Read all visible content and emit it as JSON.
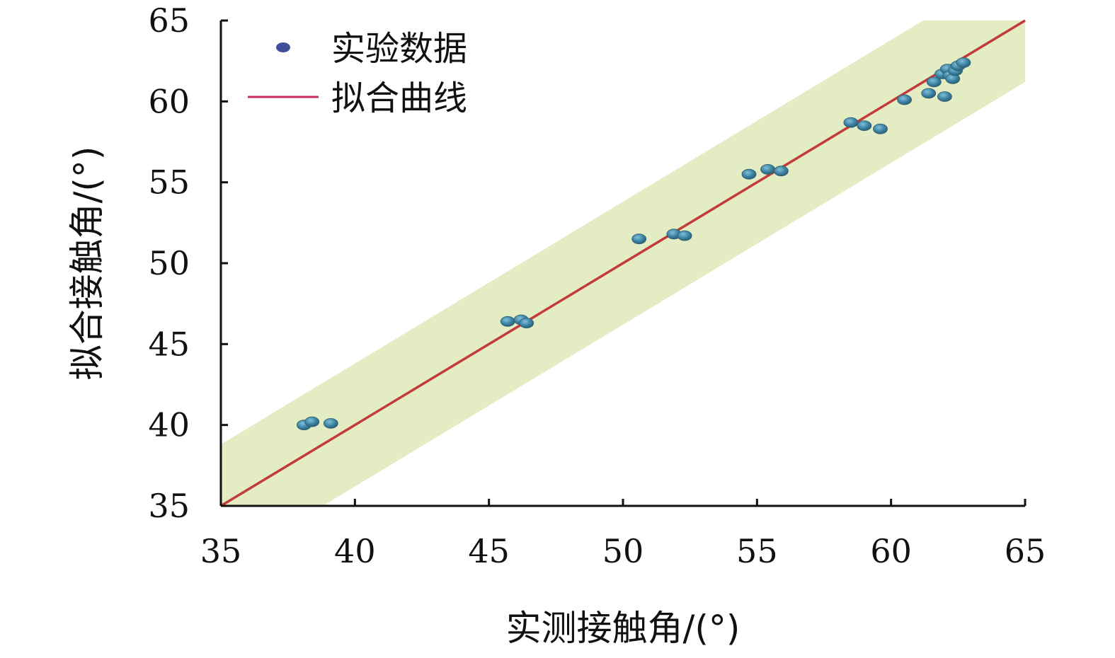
{
  "chart_data": {
    "type": "scatter",
    "title": "",
    "xlabel": "实测接触角/(°)",
    "ylabel": "拟合接触角/(°)",
    "xlim": [
      35,
      65
    ],
    "ylim": [
      35,
      65
    ],
    "x_ticks": [
      "35",
      "40",
      "45",
      "50",
      "55",
      "60",
      "65"
    ],
    "y_ticks": [
      "35",
      "40",
      "45",
      "50",
      "55",
      "60",
      "65"
    ],
    "grid": false,
    "legend_position": "top-left",
    "series": [
      {
        "name": "实验数据",
        "type": "scatter",
        "color": "#3b7fa8",
        "points": [
          [
            38.1,
            40.0
          ],
          [
            38.4,
            40.2
          ],
          [
            39.1,
            40.1
          ],
          [
            45.7,
            46.4
          ],
          [
            46.2,
            46.5
          ],
          [
            46.4,
            46.3
          ],
          [
            50.6,
            51.5
          ],
          [
            51.9,
            51.8
          ],
          [
            52.3,
            51.7
          ],
          [
            54.7,
            55.5
          ],
          [
            55.4,
            55.8
          ],
          [
            55.9,
            55.7
          ],
          [
            58.5,
            58.7
          ],
          [
            59.0,
            58.5
          ],
          [
            59.6,
            58.3
          ],
          [
            60.5,
            60.1
          ],
          [
            61.4,
            60.5
          ],
          [
            61.6,
            61.2
          ],
          [
            62.0,
            60.3
          ],
          [
            61.9,
            61.7
          ],
          [
            62.1,
            62.0
          ],
          [
            62.2,
            61.6
          ],
          [
            62.3,
            61.4
          ],
          [
            62.4,
            61.9
          ],
          [
            62.5,
            62.2
          ],
          [
            62.7,
            62.4
          ]
        ]
      },
      {
        "name": "拟合曲线",
        "type": "line",
        "color": "#c23a3a",
        "points": [
          [
            35,
            35
          ],
          [
            65,
            65
          ]
        ]
      }
    ],
    "band": {
      "color": "#e3ecc3",
      "offset": 3.8
    }
  }
}
